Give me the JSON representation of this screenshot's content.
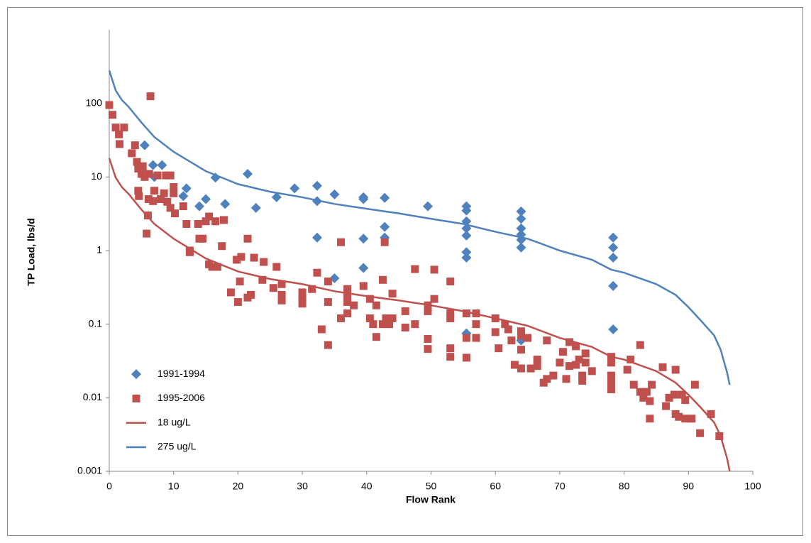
{
  "chart_data": {
    "type": "scatter",
    "x_label": "Flow Rank",
    "y_label": "TP Load, lbs/d",
    "xlim": [
      0,
      100
    ],
    "xticks": [
      0,
      10,
      20,
      30,
      40,
      50,
      60,
      70,
      80,
      90,
      100
    ],
    "ylim": [
      0.001,
      1000
    ],
    "yticks": [
      0.001,
      0.01,
      0.1,
      1,
      10,
      100
    ],
    "y_scale": "log",
    "legend": "lower left",
    "series": [
      {
        "name": "1991-1994",
        "type": "scatter",
        "marker": "diamond",
        "color": "#4f81bd",
        "x": [
          5.5,
          6.8,
          7,
          8.2,
          11.5,
          12,
          14,
          15,
          16.5,
          18,
          21.5,
          22.8,
          26,
          28.8,
          32.3,
          32.3,
          32.3,
          35,
          35,
          39.5,
          39.5,
          39.5,
          39.5,
          42.8,
          42.8,
          42.8,
          49.5,
          55.5,
          55.5,
          55.5,
          55.5,
          55.5,
          55.5,
          55.5,
          55.5,
          64,
          64,
          64,
          64,
          64,
          64,
          64,
          78.3,
          78.3,
          78.3,
          78.3,
          78.3
        ],
        "values": [
          27,
          14.5,
          10,
          14.5,
          5.5,
          7,
          4,
          5,
          9.8,
          4.3,
          11,
          3.8,
          5.3,
          7,
          7.6,
          4.7,
          1.5,
          5.8,
          0.42,
          5.3,
          5,
          1.45,
          0.58,
          5.2,
          2.1,
          1.5,
          4,
          4,
          3.5,
          2.5,
          2,
          1.6,
          0.95,
          0.8,
          0.075,
          3.4,
          2.7,
          2,
          1.65,
          1.4,
          1.1,
          0.06,
          1.5,
          1.1,
          0.8,
          0.33,
          0.085
        ]
      },
      {
        "name": "1995-2006",
        "type": "scatter",
        "marker": "square",
        "color": "#c0504d",
        "x": [
          0,
          0.5,
          1,
          1.5,
          1.6,
          2.3,
          3.5,
          4,
          4.3,
          4.5,
          4.5,
          4.6,
          5,
          5.2,
          5.5,
          5.8,
          6,
          6.1,
          6.2,
          6.4,
          6.8,
          7,
          7.5,
          8,
          8.5,
          8.8,
          9,
          9.5,
          9.5,
          10,
          10,
          10.2,
          11.5,
          12,
          12.5,
          12.5,
          13.8,
          14,
          14.5,
          15,
          15.5,
          15.5,
          16,
          16.5,
          16.8,
          17.5,
          17.8,
          18.9,
          19.8,
          20,
          20.3,
          20.5,
          21.5,
          21.5,
          22,
          22.5,
          23.8,
          24,
          25.5,
          26,
          26.8,
          26.8,
          26.8,
          30,
          30,
          30,
          31.5,
          32.3,
          33,
          34,
          34,
          34,
          36,
          36,
          37,
          37,
          37,
          37,
          38,
          39.5,
          40.5,
          40.5,
          41,
          41.5,
          41.5,
          42.5,
          42.5,
          42.8,
          43,
          43.5,
          44,
          44,
          46,
          46,
          47.5,
          47.5,
          49.5,
          49.5,
          49.5,
          49.5,
          50.5,
          50.5,
          53,
          53,
          53,
          53,
          53,
          55.5,
          55.5,
          55.5,
          57,
          57,
          57,
          60,
          60,
          60.5,
          61.5,
          62,
          62.5,
          63,
          64,
          64,
          64,
          64,
          65,
          65.5,
          66.5,
          66.5,
          67.5,
          68,
          68,
          69,
          70,
          70.5,
          71,
          71.5,
          71.5,
          72.5,
          72.5,
          73,
          73.5,
          73.5,
          74,
          74,
          75,
          78,
          78,
          78,
          78,
          78,
          80.5,
          81,
          81.5,
          82.5,
          82.5,
          83,
          83.5,
          84,
          84,
          84.3,
          86,
          86.5,
          87,
          87.8,
          88,
          88,
          88.5,
          89,
          89.5,
          89.5,
          90.5,
          91,
          91.8,
          93.5,
          94.8
        ],
        "values": [
          95,
          70,
          47,
          38,
          28,
          47,
          21,
          27,
          16,
          13,
          6.5,
          5.5,
          11,
          14,
          10,
          1.7,
          3,
          5,
          11,
          125,
          4.7,
          6.5,
          10.5,
          5,
          6,
          10.5,
          4.6,
          10.5,
          3.8,
          7.3,
          6,
          3.2,
          4,
          2.3,
          1,
          0.95,
          2.3,
          1.45,
          1.45,
          2.5,
          0.65,
          2.9,
          0.6,
          2.5,
          0.6,
          1.15,
          2.6,
          0.27,
          0.75,
          0.2,
          0.38,
          0.82,
          1.45,
          0.23,
          0.25,
          0.8,
          0.4,
          0.7,
          0.31,
          0.6,
          0.35,
          0.25,
          0.21,
          0.27,
          0.23,
          0.19,
          0.3,
          0.5,
          0.085,
          0.38,
          0.2,
          0.052,
          1.3,
          0.12,
          0.3,
          0.25,
          0.2,
          0.14,
          0.18,
          0.33,
          0.22,
          0.12,
          0.1,
          0.18,
          0.067,
          0.4,
          0.1,
          1.3,
          0.12,
          0.1,
          0.26,
          0.12,
          0.15,
          0.09,
          0.56,
          0.1,
          0.18,
          0.15,
          0.063,
          0.046,
          0.55,
          0.22,
          0.38,
          0.14,
          0.12,
          0.047,
          0.036,
          0.14,
          0.065,
          0.035,
          0.14,
          0.1,
          0.065,
          0.12,
          0.078,
          0.047,
          0.1,
          0.085,
          0.06,
          0.028,
          0.08,
          0.07,
          0.045,
          0.025,
          0.065,
          0.025,
          0.033,
          0.027,
          0.016,
          0.06,
          0.018,
          0.02,
          0.03,
          0.042,
          0.018,
          0.057,
          0.027,
          0.028,
          0.05,
          0.033,
          0.02,
          0.017,
          0.04,
          0.03,
          0.023,
          0.036,
          0.03,
          0.02,
          0.016,
          0.013,
          0.024,
          0.033,
          0.015,
          0.052,
          0.012,
          0.01,
          0.012,
          0.0052,
          0.009,
          0.015,
          0.026,
          0.0077,
          0.01,
          0.011,
          0.024,
          0.006,
          0.0055,
          0.011,
          0.0052,
          0.0093,
          0.0052,
          0.015,
          0.0033,
          0.006,
          0.003
        ]
      },
      {
        "name": "18 ug/L",
        "type": "line",
        "color": "#c0504d",
        "x": [
          0,
          1,
          2,
          3,
          5,
          7,
          10,
          15,
          20,
          25,
          30,
          35,
          40,
          45,
          50,
          55,
          60,
          65,
          70,
          75,
          78,
          80,
          85,
          88,
          90,
          92,
          94,
          95,
          96,
          96.4
        ],
        "values": [
          18,
          9.8,
          7.2,
          5.9,
          3.6,
          2.3,
          1.45,
          0.78,
          0.52,
          0.41,
          0.35,
          0.28,
          0.24,
          0.21,
          0.18,
          0.15,
          0.12,
          0.095,
          0.065,
          0.049,
          0.036,
          0.033,
          0.023,
          0.016,
          0.011,
          0.0072,
          0.0046,
          0.003,
          0.0015,
          0.001
        ]
      },
      {
        "name": "275 ug/L",
        "type": "line",
        "color": "#4f81bd",
        "x": [
          0,
          1,
          2,
          3,
          5,
          7,
          10,
          15,
          20,
          25,
          30,
          35,
          40,
          45,
          50,
          55,
          60,
          65,
          70,
          75,
          78,
          80,
          85,
          88,
          90,
          92,
          94,
          95,
          96,
          96.4
        ],
        "values": [
          280,
          150,
          110,
          90,
          55,
          35,
          22,
          12,
          8,
          6.3,
          5.3,
          4.3,
          3.7,
          3.2,
          2.7,
          2.3,
          1.8,
          1.45,
          1,
          0.75,
          0.55,
          0.5,
          0.35,
          0.25,
          0.17,
          0.11,
          0.07,
          0.045,
          0.022,
          0.015
        ]
      }
    ]
  }
}
